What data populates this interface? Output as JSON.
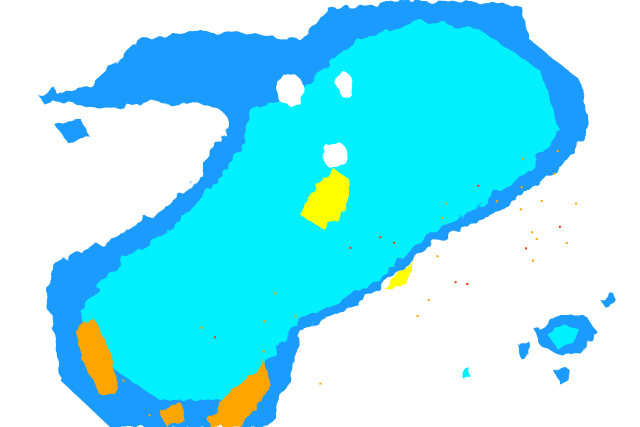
{
  "radar": {
    "colors": {
      "background": "#ffffff",
      "light_echo": "#1e9bff",
      "moderate_echo": "#00f0ff",
      "strong_echo": "#ffff00",
      "heavy_echo": "#ffa500",
      "extreme_echo": "#ff3300"
    }
  }
}
